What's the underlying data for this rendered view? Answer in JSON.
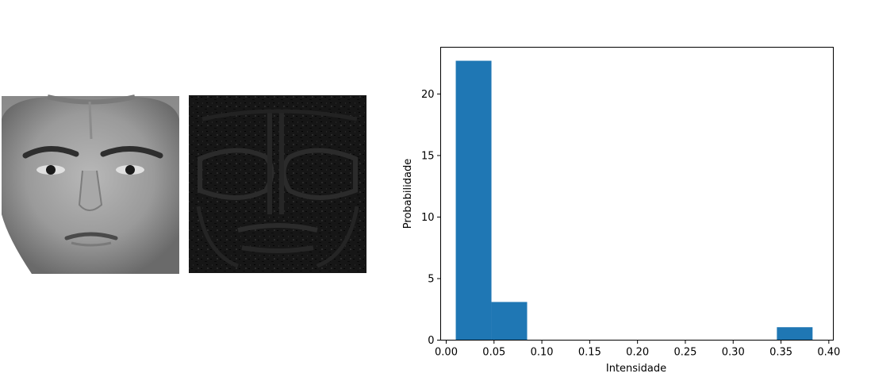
{
  "images": [
    {
      "name": "face-photo",
      "description_tone": "grayscale"
    },
    {
      "name": "lbp-texture-map",
      "description_tone": "dark"
    }
  ],
  "chart_data": {
    "type": "bar",
    "title": "",
    "xlabel": "Intensidade",
    "ylabel": "Probabilidade",
    "xlim": [
      -0.0058,
      0.4047
    ],
    "ylim": [
      0,
      23.8
    ],
    "xticks": [
      0.0,
      0.05,
      0.1,
      0.15,
      0.2,
      0.25,
      0.3,
      0.35,
      0.4
    ],
    "xtick_labels": [
      "0.00",
      "0.05",
      "0.10",
      "0.15",
      "0.20",
      "0.25",
      "0.30",
      "0.35",
      "0.40"
    ],
    "yticks": [
      0,
      5,
      10,
      15,
      20
    ],
    "ytick_labels": [
      "0",
      "5",
      "10",
      "15",
      "20"
    ],
    "bins": [
      {
        "x0": 0.01,
        "x1": 0.0473,
        "value": 22.7
      },
      {
        "x0": 0.0473,
        "x1": 0.0846,
        "value": 3.1
      },
      {
        "x0": 0.0846,
        "x1": 0.1219,
        "value": 0
      },
      {
        "x0": 0.1219,
        "x1": 0.1592,
        "value": 0
      },
      {
        "x0": 0.1592,
        "x1": 0.1965,
        "value": 0
      },
      {
        "x0": 0.1965,
        "x1": 0.2338,
        "value": 0
      },
      {
        "x0": 0.2338,
        "x1": 0.2711,
        "value": 0
      },
      {
        "x0": 0.2711,
        "x1": 0.3084,
        "value": 0
      },
      {
        "x0": 0.3084,
        "x1": 0.3457,
        "value": 0
      },
      {
        "x0": 0.3457,
        "x1": 0.383,
        "value": 1.05
      }
    ],
    "bar_color": "#1f77b4",
    "grid": false
  }
}
